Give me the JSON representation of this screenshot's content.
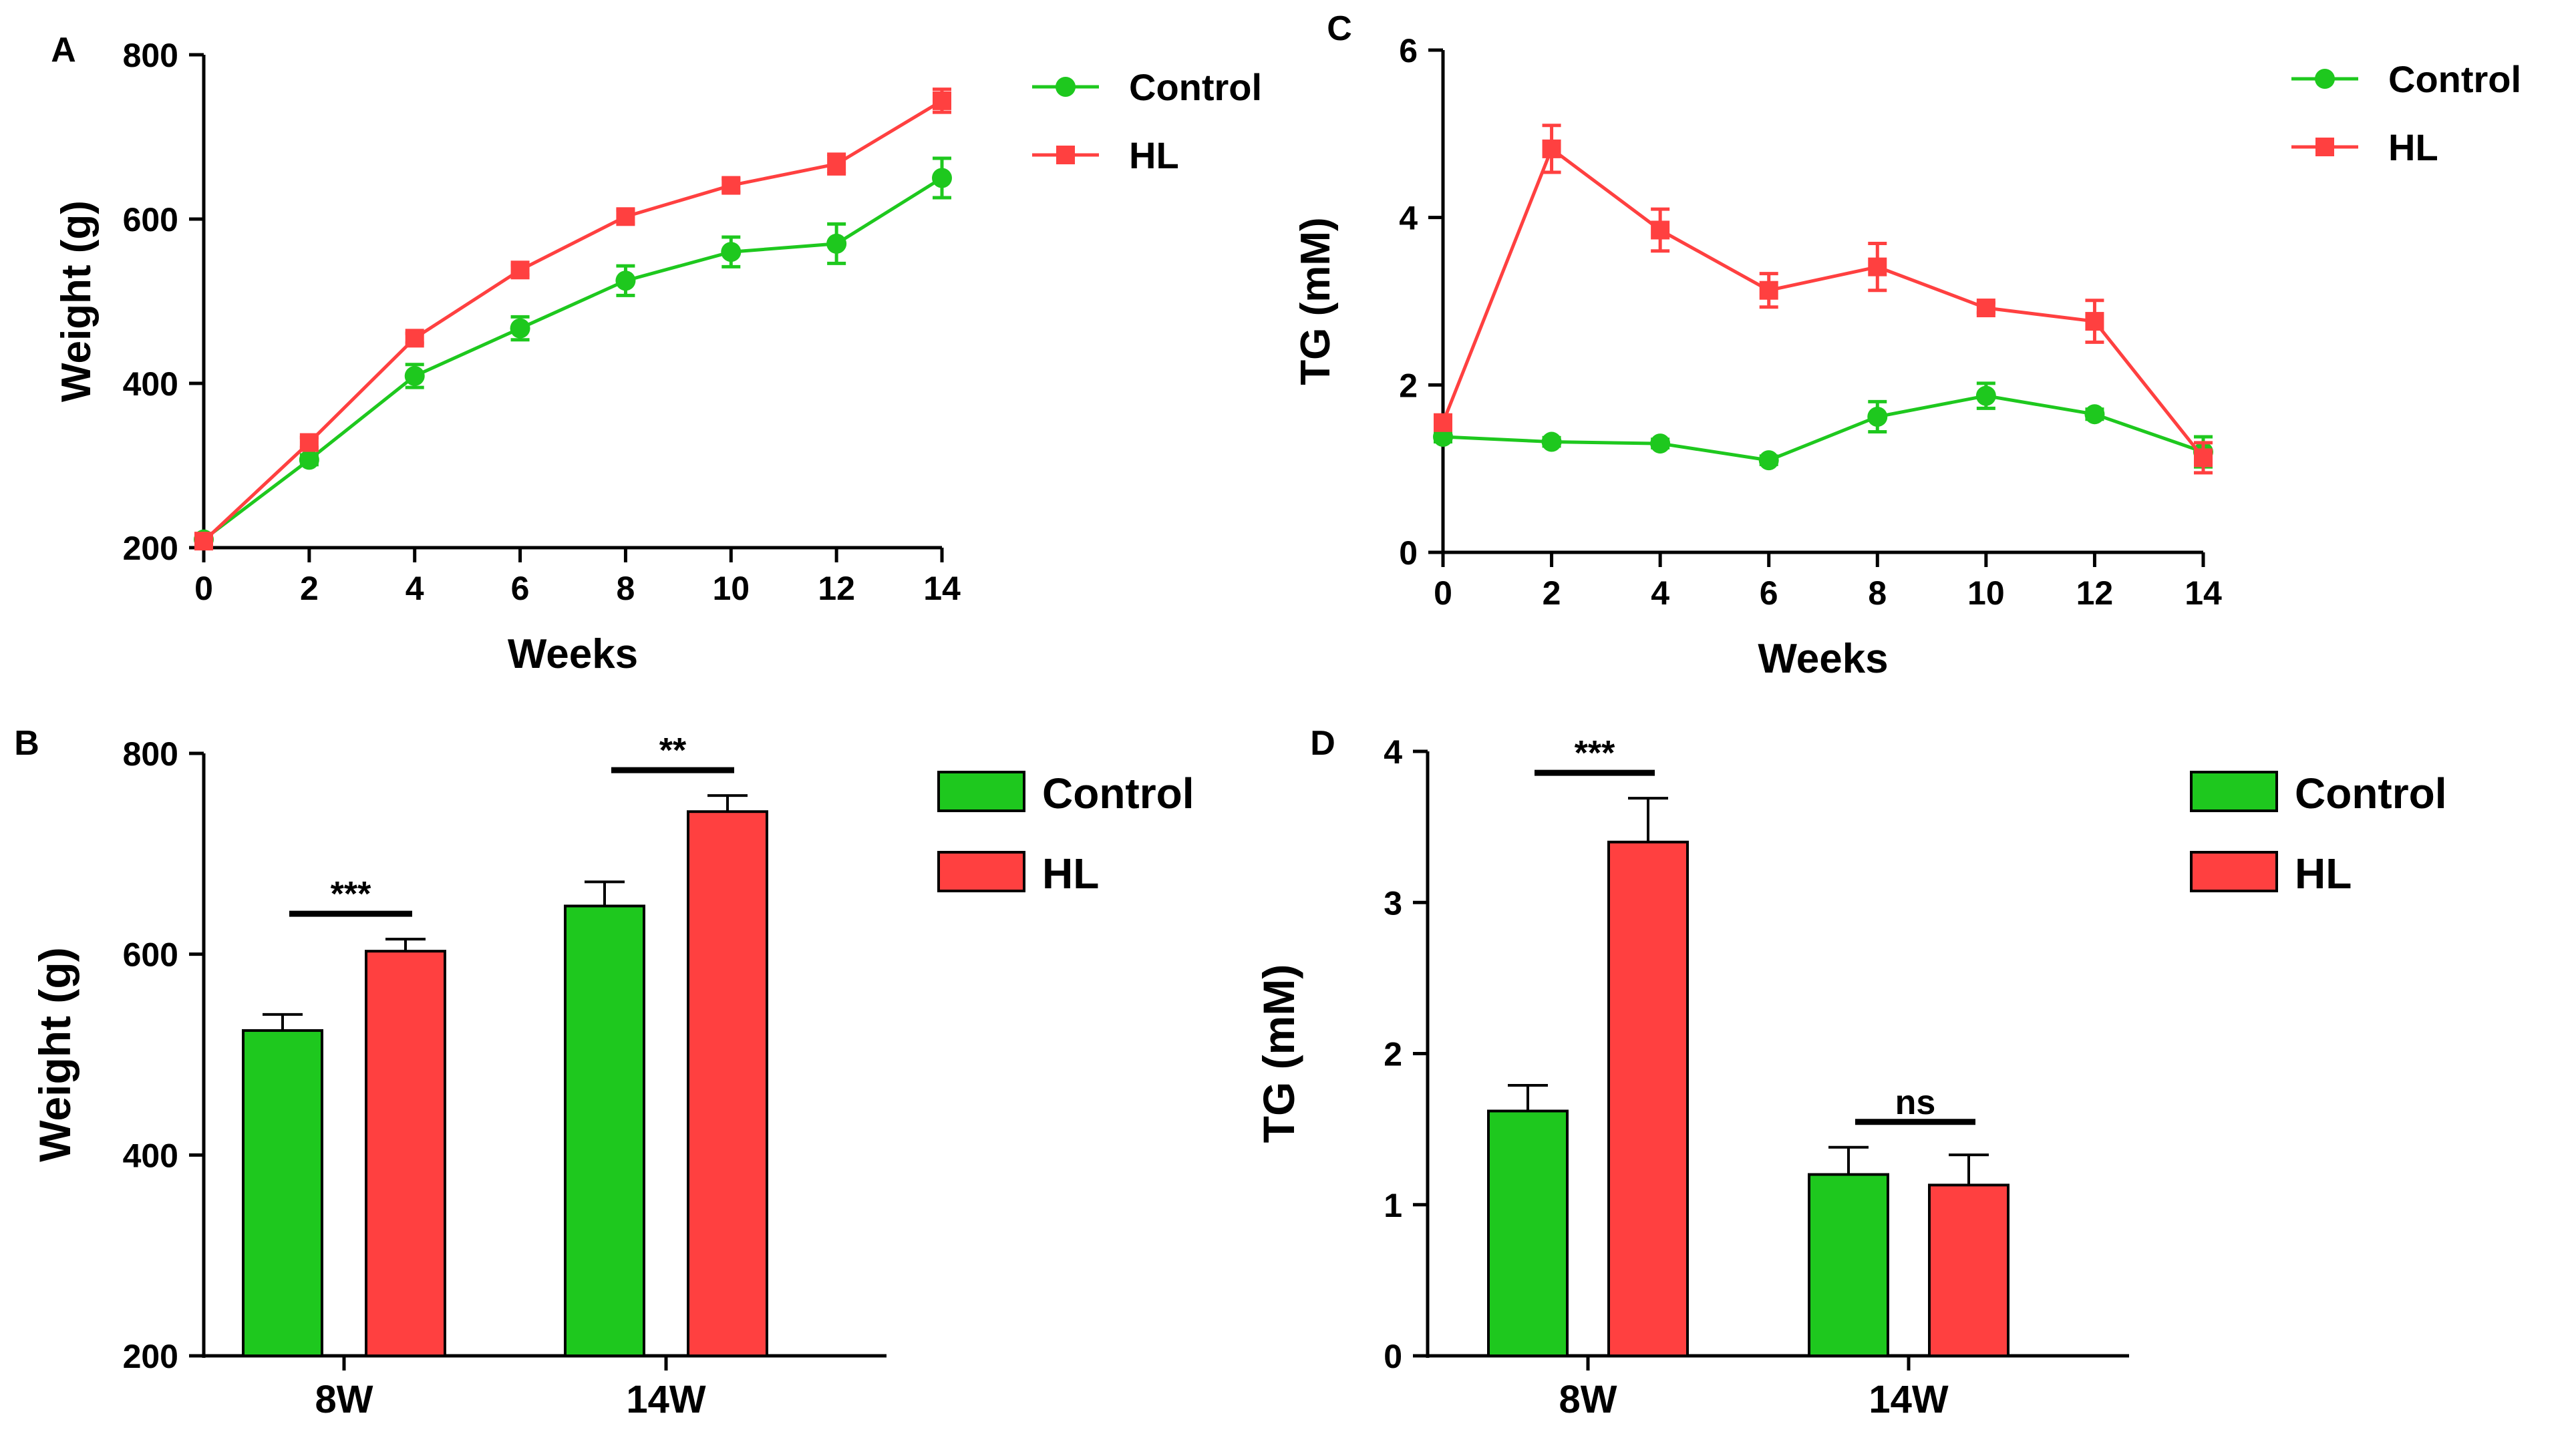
{
  "colors": {
    "control": "#1ec81e",
    "hl": "#ff4040",
    "axis": "#000000"
  },
  "chart_data": [
    {
      "panel": "A",
      "type": "line",
      "title": "",
      "xlabel": "Weeks",
      "ylabel": "Weight (g)",
      "xlim": [
        0,
        14
      ],
      "ylim": [
        200,
        800
      ],
      "xticks": [
        "0",
        "2",
        "4",
        "6",
        "8",
        "10",
        "12",
        "14"
      ],
      "yticks": [
        "200",
        "400",
        "600",
        "800"
      ],
      "x": [
        0,
        2,
        4,
        6,
        8,
        10,
        12,
        14
      ],
      "legend": [
        "Control",
        "HL"
      ],
      "series": [
        {
          "name": "Control",
          "marker": "circle",
          "color": "#1ec81e",
          "values": [
            210,
            307,
            409,
            467,
            525,
            560,
            570,
            650
          ],
          "errors": [
            5,
            6,
            14,
            14,
            18,
            18,
            24,
            24
          ]
        },
        {
          "name": "HL",
          "marker": "square",
          "color": "#ff4040",
          "values": [
            208,
            328,
            455,
            538,
            603,
            641,
            667,
            744
          ],
          "errors": [
            5,
            6,
            6,
            6,
            8,
            8,
            12,
            14
          ]
        }
      ]
    },
    {
      "panel": "B",
      "type": "bar",
      "title": "",
      "xlabel": "",
      "ylabel": "Weight (g)",
      "ylim": [
        200,
        800
      ],
      "yticks": [
        "200",
        "400",
        "600",
        "800"
      ],
      "categories": [
        "8W",
        "14W"
      ],
      "legend": [
        "Control",
        "HL"
      ],
      "series": [
        {
          "name": "Control",
          "color": "#1ec81e",
          "values": [
            524,
            648
          ],
          "errors": [
            16,
            24
          ]
        },
        {
          "name": "HL",
          "color": "#ff4040",
          "values": [
            603,
            742
          ],
          "errors": [
            12,
            16
          ]
        }
      ],
      "significance": [
        "***",
        "**"
      ]
    },
    {
      "panel": "C",
      "type": "line",
      "title": "",
      "xlabel": "Weeks",
      "ylabel": "TG (mM)",
      "xlim": [
        0,
        14
      ],
      "ylim": [
        0,
        6
      ],
      "xticks": [
        "0",
        "2",
        "4",
        "6",
        "8",
        "10",
        "12",
        "14"
      ],
      "yticks": [
        "0",
        "2",
        "4",
        "6"
      ],
      "x": [
        0,
        2,
        4,
        6,
        8,
        10,
        12,
        14
      ],
      "legend": [
        "Control",
        "HL"
      ],
      "series": [
        {
          "name": "Control",
          "marker": "circle",
          "color": "#1ec81e",
          "values": [
            1.38,
            1.32,
            1.3,
            1.1,
            1.62,
            1.87,
            1.65,
            1.2
          ],
          "errors": [
            0.06,
            0.05,
            0.05,
            0.05,
            0.18,
            0.15,
            0.06,
            0.18
          ]
        },
        {
          "name": "HL",
          "marker": "square",
          "color": "#ff4040",
          "values": [
            1.55,
            4.82,
            3.85,
            3.13,
            3.41,
            2.92,
            2.76,
            1.13
          ],
          "errors": [
            0.06,
            0.28,
            0.25,
            0.2,
            0.28,
            0.06,
            0.25,
            0.18
          ]
        }
      ]
    },
    {
      "panel": "D",
      "type": "bar",
      "title": "",
      "xlabel": "",
      "ylabel": "TG (mM)",
      "ylim": [
        0,
        4
      ],
      "yticks": [
        "0",
        "1",
        "2",
        "3",
        "4"
      ],
      "categories": [
        "8W",
        "14W"
      ],
      "legend": [
        "Control",
        "HL"
      ],
      "series": [
        {
          "name": "Control",
          "color": "#1ec81e",
          "values": [
            1.62,
            1.2
          ],
          "errors": [
            0.17,
            0.18
          ]
        },
        {
          "name": "HL",
          "color": "#ff4040",
          "values": [
            3.4,
            1.13
          ],
          "errors": [
            0.29,
            0.2
          ]
        }
      ],
      "significance": [
        "***",
        "ns"
      ]
    }
  ]
}
